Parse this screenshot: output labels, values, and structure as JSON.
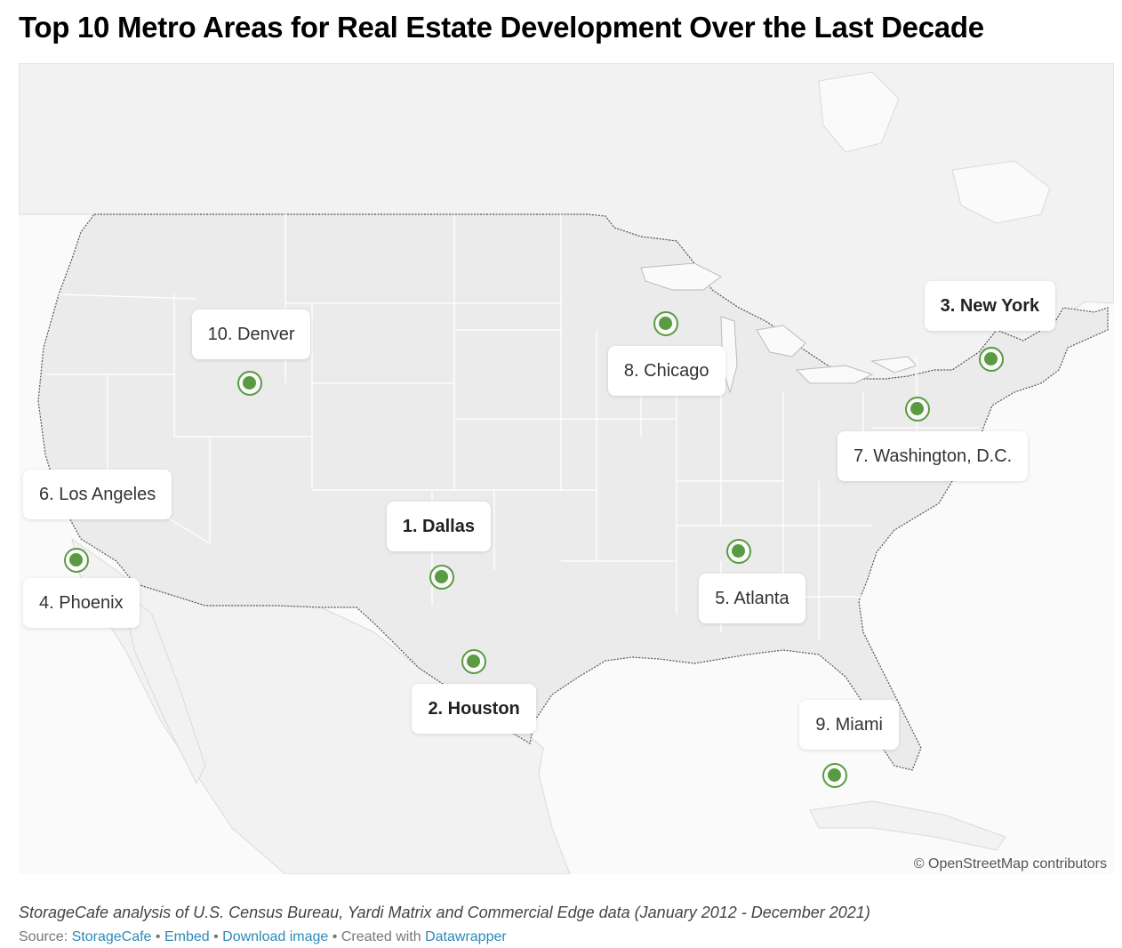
{
  "title": "Top 10 Metro Areas for Real Estate Development Over the Last Decade",
  "markers": [
    {
      "rank": 1,
      "label": "1. Dallas",
      "lat": 32.78,
      "lon": -96.8,
      "bold": true
    },
    {
      "rank": 2,
      "label": "2. Houston",
      "lat": 29.76,
      "lon": -95.37,
      "bold": true
    },
    {
      "rank": 3,
      "label": "3. New York",
      "lat": 40.71,
      "lon": -74.01,
      "bold": true
    },
    {
      "rank": 4,
      "label": "4. Phoenix",
      "lat": 33.45,
      "lon": -112.07,
      "bold": false
    },
    {
      "rank": 5,
      "label": "5. Atlanta",
      "lat": 33.75,
      "lon": -84.39,
      "bold": false
    },
    {
      "rank": 6,
      "label": "6. Los Angeles",
      "lat": 34.05,
      "lon": -118.24,
      "bold": false
    },
    {
      "rank": 7,
      "label": "7. Washington, D.C.",
      "lat": 38.91,
      "lon": -77.04,
      "bold": false
    },
    {
      "rank": 8,
      "label": "8. Chicago",
      "lat": 41.88,
      "lon": -87.63,
      "bold": false
    },
    {
      "rank": 9,
      "label": "9. Miami",
      "lat": 25.76,
      "lon": -80.19,
      "bold": false
    },
    {
      "rank": 10,
      "label": "10. Denver",
      "lat": 39.74,
      "lon": -104.99,
      "bold": false
    }
  ],
  "attribution": "© OpenStreetMap contributors",
  "notes": "StorageCafe analysis of U.S. Census Bureau, Yardi Matrix and Commercial Edge data (January 2012 - December 2021)",
  "footer": {
    "source_prefix": "Source: ",
    "source": "StorageCafe",
    "sep": " • ",
    "embed": "Embed",
    "download": "Download image",
    "created": "Created with ",
    "datawrapper": "Datawrapper"
  },
  "colors": {
    "marker": "#5a9a43",
    "land_us": "#ebebeb",
    "land_other": "#f2f2f2",
    "water": "#fafafa",
    "border": "#555555"
  }
}
